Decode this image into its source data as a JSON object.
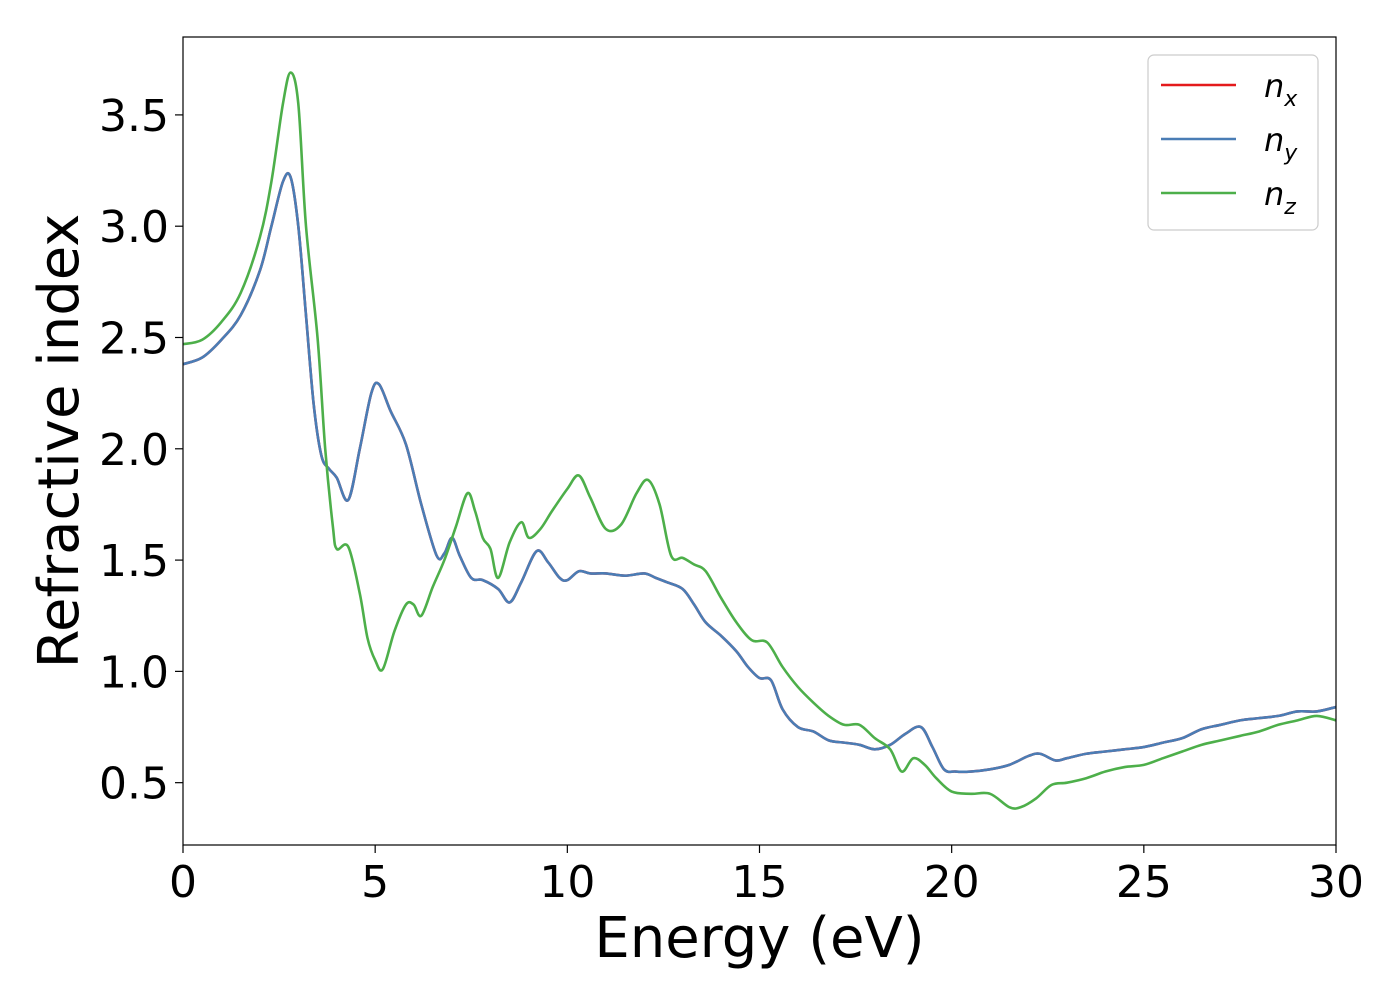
{
  "chart_data": {
    "type": "line",
    "title": "",
    "xlabel": "Energy (eV)",
    "ylabel": "Refractive index",
    "xlim": [
      0,
      30
    ],
    "ylim": [
      0.22,
      3.85
    ],
    "xticks": [
      0,
      5,
      10,
      15,
      20,
      25,
      30
    ],
    "xtick_labels": [
      "0",
      "5",
      "10",
      "15",
      "20",
      "25",
      "30"
    ],
    "yticks": [
      0.5,
      1.0,
      1.5,
      2.0,
      2.5,
      3.0,
      3.5
    ],
    "ytick_labels": [
      "0.5",
      "1.0",
      "1.5",
      "2.0",
      "2.5",
      "3.0",
      "3.5"
    ],
    "grid": false,
    "legend": "top-right",
    "series": [
      {
        "name": "n_x",
        "label_base": "n",
        "label_sub": "x",
        "color": "#e41a1c",
        "x": [
          0,
          0.5,
          1.0,
          1.5,
          2.0,
          2.3,
          2.6,
          2.8,
          3.0,
          3.2,
          3.4,
          3.6,
          3.8,
          4.0,
          4.3,
          4.6,
          4.9,
          5.1,
          5.4,
          5.8,
          6.2,
          6.6,
          6.8,
          7.0,
          7.2,
          7.5,
          7.8,
          8.2,
          8.5,
          8.8,
          9.2,
          9.5,
          9.8,
          10.0,
          10.3,
          10.6,
          11.0,
          11.5,
          12.0,
          12.3,
          12.6,
          13.0,
          13.3,
          13.6,
          14.0,
          14.4,
          14.7,
          15.0,
          15.3,
          15.6,
          16.0,
          16.4,
          16.8,
          17.2,
          17.6,
          18.0,
          18.4,
          18.8,
          19.2,
          19.5,
          19.8,
          20.1,
          20.5,
          21.0,
          21.5,
          22.0,
          22.3,
          22.7,
          23.0,
          23.5,
          24.0,
          24.5,
          25.0,
          25.5,
          26.0,
          26.5,
          27.0,
          27.5,
          28.0,
          28.5,
          29.0,
          29.5,
          30.0
        ],
        "values": [
          2.38,
          2.41,
          2.49,
          2.6,
          2.8,
          3.0,
          3.2,
          3.22,
          3.0,
          2.6,
          2.2,
          1.97,
          1.91,
          1.87,
          1.77,
          2.0,
          2.25,
          2.29,
          2.17,
          2.02,
          1.75,
          1.52,
          1.53,
          1.6,
          1.52,
          1.42,
          1.41,
          1.37,
          1.31,
          1.4,
          1.54,
          1.49,
          1.42,
          1.41,
          1.45,
          1.44,
          1.44,
          1.43,
          1.44,
          1.42,
          1.4,
          1.37,
          1.3,
          1.22,
          1.16,
          1.09,
          1.02,
          0.97,
          0.96,
          0.83,
          0.75,
          0.73,
          0.69,
          0.68,
          0.67,
          0.65,
          0.67,
          0.72,
          0.75,
          0.66,
          0.56,
          0.55,
          0.55,
          0.56,
          0.58,
          0.62,
          0.63,
          0.6,
          0.61,
          0.63,
          0.64,
          0.65,
          0.66,
          0.68,
          0.7,
          0.74,
          0.76,
          0.78,
          0.79,
          0.8,
          0.82,
          0.82,
          0.84
        ]
      },
      {
        "name": "n_y",
        "label_base": "n",
        "label_sub": "y",
        "color": "#4a7db5",
        "x": [
          0,
          0.5,
          1.0,
          1.5,
          2.0,
          2.3,
          2.6,
          2.8,
          3.0,
          3.2,
          3.4,
          3.6,
          3.8,
          4.0,
          4.3,
          4.6,
          4.9,
          5.1,
          5.4,
          5.8,
          6.2,
          6.6,
          6.8,
          7.0,
          7.2,
          7.5,
          7.8,
          8.2,
          8.5,
          8.8,
          9.2,
          9.5,
          9.8,
          10.0,
          10.3,
          10.6,
          11.0,
          11.5,
          12.0,
          12.3,
          12.6,
          13.0,
          13.3,
          13.6,
          14.0,
          14.4,
          14.7,
          15.0,
          15.3,
          15.6,
          16.0,
          16.4,
          16.8,
          17.2,
          17.6,
          18.0,
          18.4,
          18.8,
          19.2,
          19.5,
          19.8,
          20.1,
          20.5,
          21.0,
          21.5,
          22.0,
          22.3,
          22.7,
          23.0,
          23.5,
          24.0,
          24.5,
          25.0,
          25.5,
          26.0,
          26.5,
          27.0,
          27.5,
          28.0,
          28.5,
          29.0,
          29.5,
          30.0
        ],
        "values": [
          2.38,
          2.41,
          2.49,
          2.6,
          2.8,
          3.0,
          3.2,
          3.22,
          3.0,
          2.6,
          2.2,
          1.97,
          1.91,
          1.87,
          1.77,
          2.0,
          2.25,
          2.29,
          2.17,
          2.02,
          1.75,
          1.52,
          1.53,
          1.6,
          1.52,
          1.42,
          1.41,
          1.37,
          1.31,
          1.4,
          1.54,
          1.49,
          1.42,
          1.41,
          1.45,
          1.44,
          1.44,
          1.43,
          1.44,
          1.42,
          1.4,
          1.37,
          1.3,
          1.22,
          1.16,
          1.09,
          1.02,
          0.97,
          0.96,
          0.83,
          0.75,
          0.73,
          0.69,
          0.68,
          0.67,
          0.65,
          0.67,
          0.72,
          0.75,
          0.66,
          0.56,
          0.55,
          0.55,
          0.56,
          0.58,
          0.62,
          0.63,
          0.6,
          0.61,
          0.63,
          0.64,
          0.65,
          0.66,
          0.68,
          0.7,
          0.74,
          0.76,
          0.78,
          0.79,
          0.8,
          0.82,
          0.82,
          0.84
        ]
      },
      {
        "name": "n_z",
        "label_base": "n",
        "label_sub": "z",
        "color": "#4daf4a",
        "x": [
          0,
          0.5,
          1.0,
          1.5,
          2.0,
          2.3,
          2.6,
          2.8,
          3.0,
          3.2,
          3.5,
          3.7,
          3.9,
          4.0,
          4.3,
          4.6,
          4.8,
          5.0,
          5.2,
          5.5,
          5.8,
          6.0,
          6.2,
          6.5,
          6.8,
          7.1,
          7.4,
          7.6,
          7.8,
          8.0,
          8.2,
          8.5,
          8.8,
          9.0,
          9.3,
          9.6,
          10.0,
          10.3,
          10.6,
          11.0,
          11.4,
          11.8,
          12.1,
          12.4,
          12.7,
          13.0,
          13.3,
          13.6,
          14.0,
          14.4,
          14.8,
          15.2,
          15.6,
          16.0,
          16.4,
          16.8,
          17.2,
          17.6,
          18.0,
          18.4,
          18.7,
          19.0,
          19.3,
          19.6,
          20.0,
          20.5,
          21.0,
          21.5,
          21.8,
          22.2,
          22.6,
          23.0,
          23.5,
          24.0,
          24.5,
          25.0,
          25.5,
          26.0,
          26.5,
          27.0,
          27.5,
          28.0,
          28.5,
          29.0,
          29.5,
          30.0
        ],
        "values": [
          2.47,
          2.49,
          2.57,
          2.7,
          2.95,
          3.2,
          3.55,
          3.69,
          3.55,
          3.0,
          2.5,
          2.0,
          1.65,
          1.55,
          1.56,
          1.35,
          1.15,
          1.05,
          1.01,
          1.18,
          1.3,
          1.3,
          1.25,
          1.38,
          1.5,
          1.65,
          1.8,
          1.72,
          1.6,
          1.55,
          1.42,
          1.58,
          1.67,
          1.6,
          1.64,
          1.72,
          1.82,
          1.88,
          1.78,
          1.64,
          1.66,
          1.8,
          1.86,
          1.75,
          1.52,
          1.51,
          1.48,
          1.45,
          1.33,
          1.22,
          1.14,
          1.13,
          1.02,
          0.93,
          0.86,
          0.8,
          0.76,
          0.76,
          0.7,
          0.65,
          0.55,
          0.61,
          0.58,
          0.52,
          0.46,
          0.45,
          0.45,
          0.39,
          0.39,
          0.43,
          0.49,
          0.5,
          0.52,
          0.55,
          0.57,
          0.58,
          0.61,
          0.64,
          0.67,
          0.69,
          0.71,
          0.73,
          0.76,
          0.78,
          0.8,
          0.78
        ]
      }
    ]
  }
}
